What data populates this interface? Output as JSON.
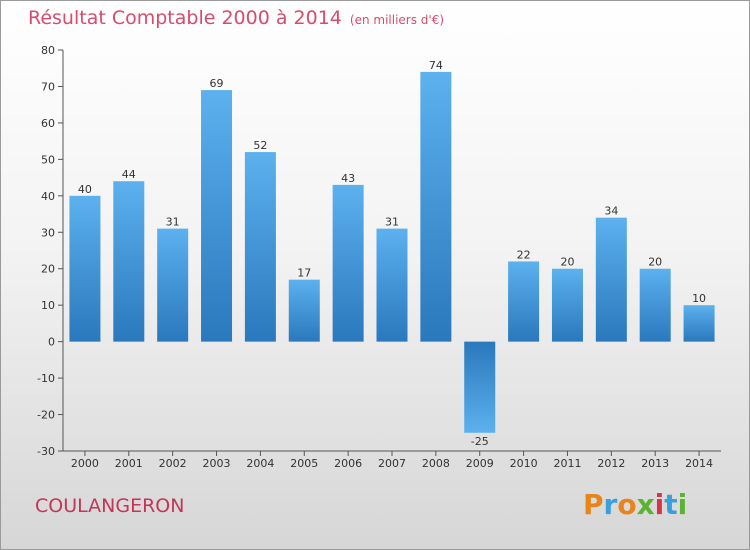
{
  "header": {
    "title": "Résultat Comptable 2000 à 2014",
    "subtitle": "(en milliers d'€)"
  },
  "footer": {
    "town": "COULANGERON",
    "logo_letters": [
      "P",
      "r",
      "o",
      "x",
      "i",
      "t",
      "i"
    ],
    "logo_colors": [
      "#e8841c",
      "#3aa0dc",
      "#e8841c",
      "#5bb334",
      "#d9334b",
      "#3aa0dc",
      "#5bb334"
    ]
  },
  "chart_data": {
    "type": "bar",
    "categories": [
      "2000",
      "2001",
      "2002",
      "2003",
      "2004",
      "2005",
      "2006",
      "2007",
      "2008",
      "2009",
      "2010",
      "2011",
      "2012",
      "2013",
      "2014"
    ],
    "values": [
      40,
      44,
      31,
      69,
      52,
      17,
      43,
      31,
      74,
      -25,
      22,
      20,
      34,
      20,
      10
    ],
    "title": "Résultat Comptable 2000 à 2014",
    "ylim": [
      -30,
      80
    ],
    "yticks": [
      80,
      70,
      60,
      50,
      40,
      30,
      20,
      10,
      0,
      -10,
      -20,
      -30
    ],
    "grid": false,
    "bar_color": "#3a8fd6"
  }
}
